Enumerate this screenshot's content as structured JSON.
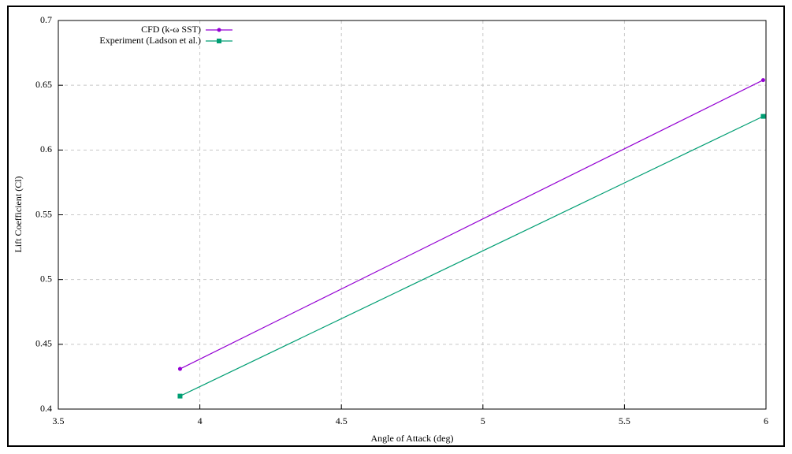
{
  "chart_data": {
    "type": "line",
    "x_label": "Angle of Attack (deg)",
    "y_label": "Lift Coefficient (Cl)",
    "series": [
      {
        "name": "CFD (k-ω SST)",
        "color": "#9400d3",
        "marker": "circle",
        "x": [
          3.93,
          5.99
        ],
        "values": [
          0.431,
          0.654
        ]
      },
      {
        "name": "Experiment (Ladson et al.)",
        "color": "#009e73",
        "marker": "square",
        "x": [
          3.93,
          5.99
        ],
        "values": [
          0.41,
          0.626
        ]
      }
    ],
    "xlim": [
      3.5,
      6
    ],
    "xticks": [
      3.5,
      4,
      4.5,
      5,
      5.5,
      6
    ],
    "ylim": [
      0.4,
      0.7
    ],
    "yticks": [
      0.4,
      0.45,
      0.5,
      0.55,
      0.6,
      0.65,
      0.7
    ],
    "grid": true,
    "legend": "top-left"
  }
}
